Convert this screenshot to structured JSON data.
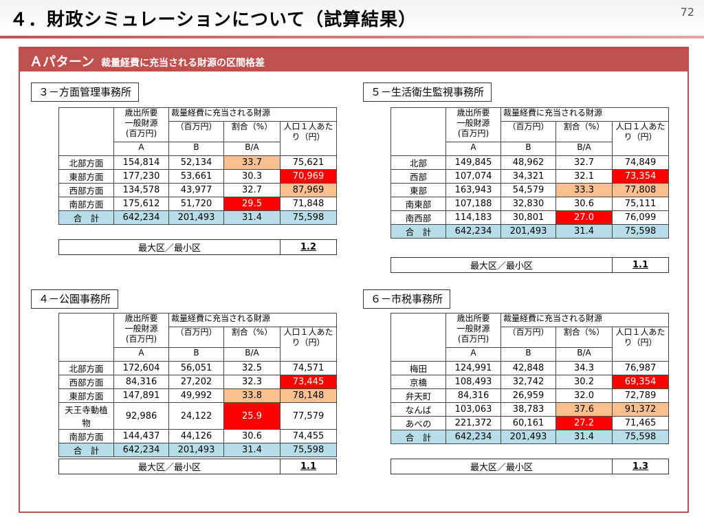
{
  "page": {
    "title": "４．財政シミュレーションについて（試算結果）",
    "number": "72"
  },
  "pattern": {
    "label": "Ａパターン",
    "subtitle": "裁量経費に充当される財源の区間格差"
  },
  "headers": {
    "revenue": "歳出所要\n一般財源\n(百万円)",
    "group": "裁量経費に充当される財源",
    "million": "（百万円）",
    "ratio": "割合（%）",
    "per_capita": "人口１人あた\nり（円）",
    "col_a": "A",
    "col_b": "B",
    "col_ba": "B/A"
  },
  "ratio_label": "最大区／最小区",
  "blocks": [
    {
      "name": "３－方面管理事務所",
      "rows": [
        {
          "label": "北部方面",
          "a": "154,814",
          "b": "52,134",
          "pct": "33.7",
          "yen": "75,621",
          "pct_hl": "peach",
          "yen_hl": ""
        },
        {
          "label": "東部方面",
          "a": "177,230",
          "b": "53,661",
          "pct": "30.3",
          "yen": "70,969",
          "pct_hl": "",
          "yen_hl": "red"
        },
        {
          "label": "西部方面",
          "a": "134,578",
          "b": "43,977",
          "pct": "32.7",
          "yen": "87,969",
          "pct_hl": "",
          "yen_hl": "peach"
        },
        {
          "label": "南部方面",
          "a": "175,612",
          "b": "51,720",
          "pct": "29.5",
          "yen": "71,848",
          "pct_hl": "red",
          "yen_hl": ""
        }
      ],
      "total": {
        "label": "合　計",
        "a": "642,234",
        "b": "201,493",
        "pct": "31.4",
        "yen": "75,598"
      },
      "ratio": "1.2"
    },
    {
      "name": "５－生活衛生監視事務所",
      "rows": [
        {
          "label": "北部",
          "a": "149,845",
          "b": "48,962",
          "pct": "32.7",
          "yen": "74,849",
          "pct_hl": "",
          "yen_hl": ""
        },
        {
          "label": "西部",
          "a": "107,074",
          "b": "34,321",
          "pct": "32.1",
          "yen": "73,354",
          "pct_hl": "",
          "yen_hl": "red"
        },
        {
          "label": "東部",
          "a": "163,943",
          "b": "54,579",
          "pct": "33.3",
          "yen": "77,808",
          "pct_hl": "peach",
          "yen_hl": "peach"
        },
        {
          "label": "南東部",
          "a": "107,188",
          "b": "32,830",
          "pct": "30.6",
          "yen": "75,111",
          "pct_hl": "",
          "yen_hl": ""
        },
        {
          "label": "南西部",
          "a": "114,183",
          "b": "30,801",
          "pct": "27.0",
          "yen": "76,099",
          "pct_hl": "red",
          "yen_hl": ""
        }
      ],
      "total": {
        "label": "合　計",
        "a": "642,234",
        "b": "201,493",
        "pct": "31.4",
        "yen": "75,598"
      },
      "ratio": "1.1"
    },
    {
      "name": "４－公園事務所",
      "rows": [
        {
          "label": "北部方面",
          "a": "172,604",
          "b": "56,051",
          "pct": "32.5",
          "yen": "74,571",
          "pct_hl": "",
          "yen_hl": ""
        },
        {
          "label": "西部方面",
          "a": "84,316",
          "b": "27,202",
          "pct": "32.3",
          "yen": "73,445",
          "pct_hl": "",
          "yen_hl": "red"
        },
        {
          "label": "東部方面",
          "a": "147,891",
          "b": "49,992",
          "pct": "33.8",
          "yen": "78,148",
          "pct_hl": "peach",
          "yen_hl": "peach"
        },
        {
          "label": "天王寺動植物",
          "a": "92,986",
          "b": "24,122",
          "pct": "25.9",
          "yen": "77,579",
          "pct_hl": "red",
          "yen_hl": ""
        },
        {
          "label": "南部方面",
          "a": "144,437",
          "b": "44,126",
          "pct": "30.6",
          "yen": "74,455",
          "pct_hl": "",
          "yen_hl": ""
        }
      ],
      "total": {
        "label": "合　計",
        "a": "642,234",
        "b": "201,493",
        "pct": "31.4",
        "yen": "75,598"
      },
      "ratio": "1.1"
    },
    {
      "name": "６－市税事務所",
      "rows": [
        {
          "label": "梅田",
          "a": "124,991",
          "b": "42,848",
          "pct": "34.3",
          "yen": "76,987",
          "pct_hl": "",
          "yen_hl": ""
        },
        {
          "label": "京橋",
          "a": "108,493",
          "b": "32,742",
          "pct": "30.2",
          "yen": "69,354",
          "pct_hl": "",
          "yen_hl": "red"
        },
        {
          "label": "弁天町",
          "a": "84,316",
          "b": "26,959",
          "pct": "32.0",
          "yen": "72,789",
          "pct_hl": "",
          "yen_hl": ""
        },
        {
          "label": "なんば",
          "a": "103,063",
          "b": "38,783",
          "pct": "37.6",
          "yen": "91,372",
          "pct_hl": "peach",
          "yen_hl": "peach"
        },
        {
          "label": "あべの",
          "a": "221,372",
          "b": "60,161",
          "pct": "27.2",
          "yen": "71,465",
          "pct_hl": "red",
          "yen_hl": ""
        }
      ],
      "total": {
        "label": "合　計",
        "a": "642,234",
        "b": "201,493",
        "pct": "31.4",
        "yen": "75,598"
      },
      "ratio": "1.3"
    }
  ]
}
